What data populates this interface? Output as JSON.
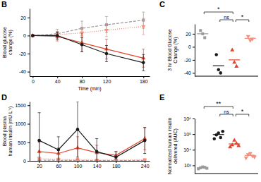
{
  "chart_data": [
    {
      "type": "line",
      "title": "B",
      "x_label": "Time (min)",
      "y_label": [
        "Blood glucose",
        "change (%)"
      ],
      "x": [
        0,
        40,
        80,
        120,
        180
      ],
      "xlim": [
        -5,
        190
      ],
      "xticks": [
        0,
        40,
        80,
        120,
        180
      ],
      "ylim": [
        -45,
        30
      ],
      "yticks": [
        -40,
        -20,
        0,
        20
      ],
      "series": [
        {
          "color": "#9a9a9a",
          "line_style": "dashed",
          "marker": "square",
          "values": [
            0,
            2,
            8,
            12,
            17
          ],
          "errors": [
            0,
            5,
            8,
            9,
            9
          ]
        },
        {
          "color": "#f2917d",
          "line_style": "dotted",
          "marker": "triangle-down",
          "values": [
            0,
            1,
            3,
            6,
            10
          ],
          "errors": [
            0,
            3,
            5,
            7,
            9
          ]
        },
        {
          "color": "#e2462f",
          "line_style": "solid",
          "marker": "triangle",
          "values": [
            0,
            -1,
            -8,
            -15,
            -25
          ],
          "errors": [
            0,
            5,
            10,
            11,
            10
          ]
        },
        {
          "color": "#1a1a1a",
          "line_style": "solid",
          "marker": "circle",
          "values": [
            0,
            0,
            -10,
            -20,
            -30
          ],
          "errors": [
            0,
            4,
            8,
            9,
            9
          ]
        }
      ]
    },
    {
      "type": "strip",
      "title": "C",
      "y_label": [
        "3 hr Blood Glucose",
        "Change (%)"
      ],
      "tick_labels": "y",
      "ylim": [
        -45,
        35
      ],
      "yticks": [
        -40,
        -20,
        0,
        20
      ],
      "groups": [
        {
          "color": "#9a9a9a",
          "marker": "square",
          "values": [
            25,
            20,
            14
          ],
          "mean": 20
        },
        {
          "color": "#1a1a1a",
          "marker": "circle",
          "values": [
            -12,
            -35,
            -40
          ],
          "mean": -29
        },
        {
          "color": "#e2462f",
          "marker": "triangle",
          "values": [
            -5,
            -24,
            -30
          ],
          "mean": -20
        },
        {
          "color": "#f2917d",
          "marker": "triangle-down",
          "values": [
            16,
            10,
            12
          ],
          "mean": 13
        }
      ],
      "annotations": [
        {
          "text": "*",
          "groups": [
            0,
            2
          ]
        },
        {
          "text": "ns",
          "groups": [
            1,
            2
          ]
        },
        {
          "text": "*",
          "groups": [
            2,
            3
          ]
        }
      ]
    },
    {
      "type": "line",
      "title": "D",
      "y_label": [
        "Blood plasma",
        "human insulin (mU L⁻¹)"
      ],
      "x": [
        20,
        60,
        100,
        140,
        180,
        240
      ],
      "xlim": [
        0,
        250
      ],
      "xticks": [
        20,
        60,
        100,
        140,
        180,
        240
      ],
      "ylim": [
        0,
        1600
      ],
      "yticks": [
        0,
        500,
        1000,
        1500
      ],
      "series": [
        {
          "color": "#9a9a9a",
          "line_style": "dashed",
          "marker": "square",
          "values": [
            20,
            15,
            10,
            10,
            10,
            10
          ],
          "errors": [
            20,
            15,
            10,
            10,
            10,
            10
          ]
        },
        {
          "color": "#f2917d",
          "line_style": "dotted",
          "marker": "triangle-down",
          "values": [
            60,
            40,
            30,
            20,
            20,
            30
          ],
          "errors": [
            60,
            40,
            30,
            20,
            20,
            30
          ]
        },
        {
          "color": "#e2462f",
          "line_style": "solid",
          "marker": "triangle",
          "values": [
            250,
            200,
            350,
            220,
            150,
            600
          ],
          "errors": [
            250,
            150,
            300,
            200,
            100,
            300
          ]
        },
        {
          "color": "#1a1a1a",
          "line_style": "solid",
          "marker": "circle",
          "values": [
            550,
            300,
            850,
            250,
            100,
            550
          ],
          "errors": [
            750,
            350,
            750,
            350,
            150,
            350
          ]
        }
      ]
    },
    {
      "type": "strip",
      "title": "E",
      "log": "y",
      "y_label": [
        "Normalized human insulin",
        "delivered (AUC)"
      ],
      "tick_labels": "y",
      "ylim": [
        300,
        1000000
      ],
      "yticks": [
        {
          "value": 1000,
          "label": "10³"
        },
        {
          "value": 10000,
          "label": "10⁴"
        },
        {
          "value": 100000,
          "label": "10⁵"
        },
        {
          "value": 1000000,
          "label": "10⁶"
        }
      ],
      "groups": [
        {
          "color": "#9a9a9a",
          "marker": "square",
          "values": [
            600,
            700,
            800,
            750,
            650
          ],
          "mean": 700
        },
        {
          "color": "#1a1a1a",
          "marker": "circle",
          "values": [
            50000,
            90000,
            120000,
            60000,
            150000
          ],
          "mean": 94000
        },
        {
          "color": "#e2462f",
          "marker": "triangle",
          "values": [
            15000,
            20000,
            40000,
            25000,
            18000
          ],
          "mean": 23600
        },
        {
          "color": "#f2917d",
          "marker": "triangle-down",
          "values": [
            3000,
            5000,
            6000,
            4000,
            3500
          ],
          "mean": 4300
        }
      ],
      "annotations": [
        {
          "text": "**",
          "groups": [
            0,
            2
          ]
        },
        {
          "text": "ns",
          "groups": [
            1,
            2
          ]
        },
        {
          "text": "*",
          "groups": [
            2,
            3
          ]
        }
      ]
    }
  ]
}
